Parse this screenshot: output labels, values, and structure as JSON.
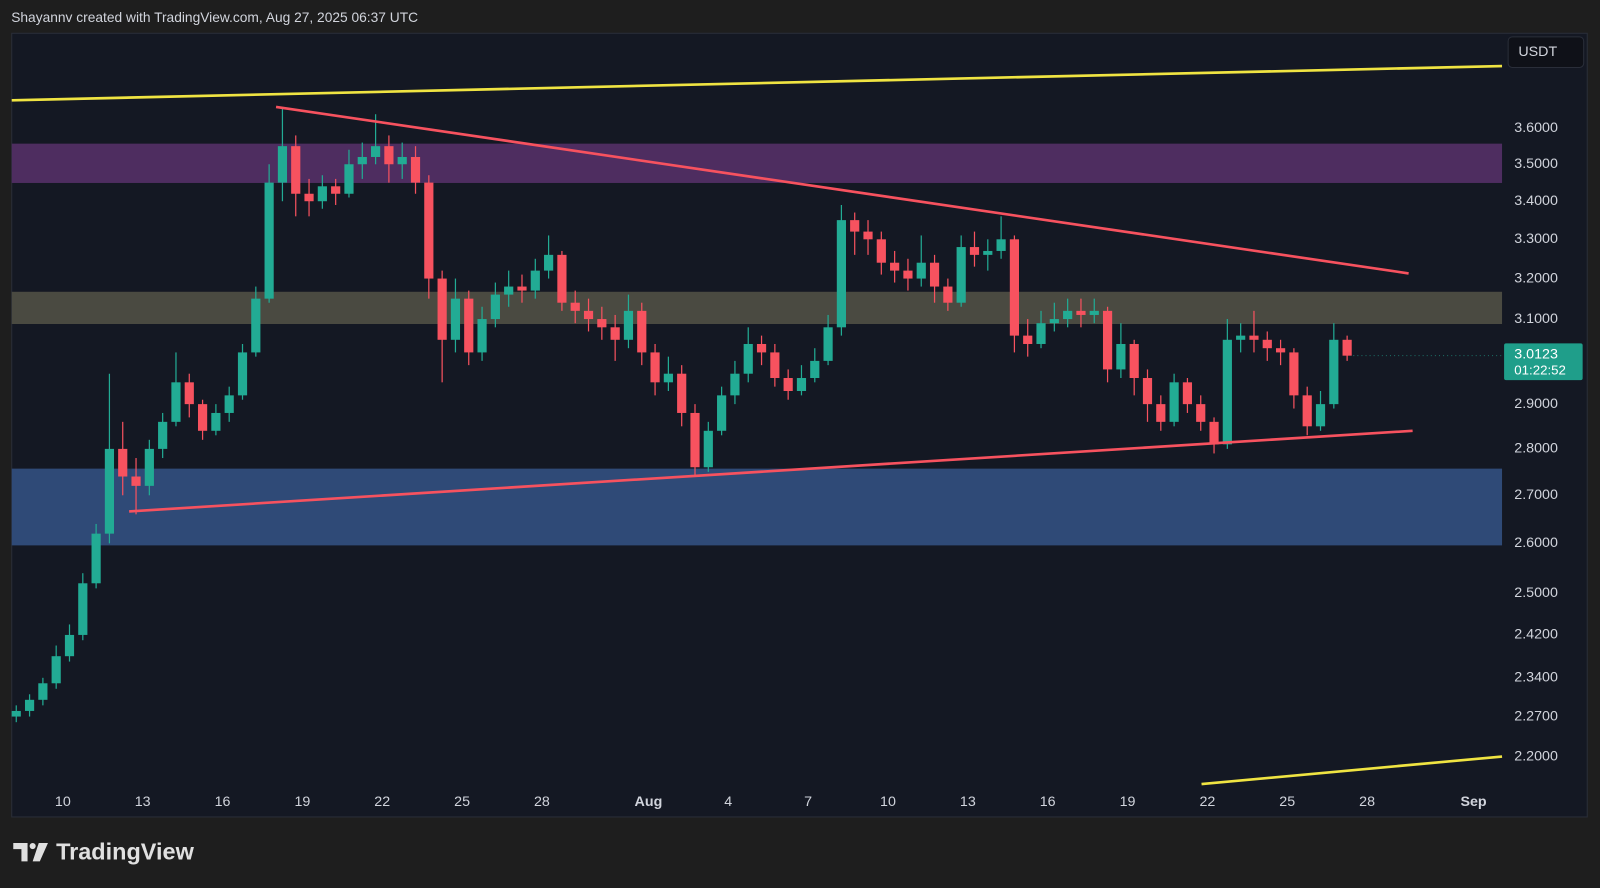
{
  "header": "Shayannv created with TradingView.com, Aug 27, 2025 06:37 UTC",
  "chart_data": {
    "type": "candlestick",
    "currency": "USDT",
    "countdown": "01:22:52",
    "up_color": "#22ab94",
    "down_color": "#f7525f",
    "log_scale": true,
    "grid": false,
    "x": [
      8.25,
      8.75,
      9.25,
      9.75,
      10.25,
      10.75,
      11.25,
      11.75,
      12.25,
      12.75,
      13.25,
      13.75,
      14.25,
      14.75,
      15.25,
      15.75,
      16.25,
      16.75,
      17.25,
      17.75,
      18.25,
      18.75,
      19.25,
      19.75,
      20.25,
      20.75,
      21.25,
      21.75,
      22.25,
      22.75,
      23.25,
      23.75,
      24.25,
      24.75,
      25.25,
      25.75,
      26.25,
      26.75,
      27.25,
      27.75,
      28.25,
      28.75,
      29.25,
      29.75,
      30.25,
      30.75,
      31.25,
      31.75,
      32.25,
      32.75,
      33.25,
      33.75,
      34.25,
      34.75,
      35.25,
      35.75,
      36.25,
      36.75,
      37.25,
      37.75,
      38.25,
      38.75,
      39.25,
      39.75,
      40.25,
      40.75,
      41.25,
      41.75,
      42.25,
      42.75,
      43.25,
      43.75,
      44.25,
      44.75,
      45.25,
      45.75,
      46.25,
      46.75,
      47.25,
      47.75,
      48.25,
      48.75,
      49.25,
      49.75,
      50.25,
      50.75,
      51.25,
      51.75,
      52.25,
      52.75,
      53.25,
      53.75,
      54.25,
      54.75,
      55.25,
      55.75,
      56.25,
      56.75,
      57.25,
      57.75,
      58.25
    ],
    "open": [
      2.27,
      2.28,
      2.3,
      2.33,
      2.38,
      2.42,
      2.52,
      2.62,
      2.8,
      2.74,
      2.72,
      2.8,
      2.86,
      2.95,
      2.9,
      2.84,
      2.88,
      2.92,
      3.02,
      3.15,
      3.45,
      3.55,
      3.42,
      3.4,
      3.44,
      3.42,
      3.5,
      3.52,
      3.55,
      3.5,
      3.52,
      3.45,
      3.2,
      3.05,
      3.15,
      3.02,
      3.1,
      3.16,
      3.18,
      3.17,
      3.22,
      3.26,
      3.14,
      3.12,
      3.1,
      3.08,
      3.05,
      3.12,
      3.02,
      2.95,
      2.97,
      2.88,
      2.76,
      2.84,
      2.92,
      2.97,
      3.04,
      3.02,
      2.96,
      2.93,
      2.96,
      3.0,
      3.08,
      3.35,
      3.32,
      3.3,
      3.24,
      3.22,
      3.2,
      3.24,
      3.18,
      3.14,
      3.28,
      3.26,
      3.27,
      3.3,
      3.06,
      3.04,
      3.09,
      3.1,
      3.12,
      3.11,
      3.12,
      2.98,
      3.04,
      2.96,
      2.9,
      2.86,
      2.95,
      2.9,
      2.86,
      2.81,
      3.05,
      3.06,
      3.05,
      3.03,
      3.02,
      2.92,
      2.85,
      2.9,
      3.05
    ],
    "high": [
      2.29,
      2.31,
      2.34,
      2.4,
      2.44,
      2.54,
      2.64,
      2.97,
      2.86,
      2.78,
      2.82,
      2.88,
      3.02,
      2.97,
      2.91,
      2.9,
      2.94,
      3.04,
      3.18,
      3.5,
      3.66,
      3.58,
      3.46,
      3.47,
      3.46,
      3.54,
      3.56,
      3.64,
      3.58,
      3.56,
      3.55,
      3.47,
      3.22,
      3.2,
      3.17,
      3.13,
      3.19,
      3.22,
      3.21,
      3.25,
      3.31,
      3.27,
      3.17,
      3.15,
      3.13,
      3.11,
      3.16,
      3.14,
      3.04,
      3.01,
      2.99,
      2.9,
      2.86,
      2.94,
      3.0,
      3.08,
      3.06,
      3.04,
      2.98,
      2.99,
      3.03,
      3.11,
      3.39,
      3.37,
      3.35,
      3.32,
      3.27,
      3.25,
      3.31,
      3.26,
      3.2,
      3.31,
      3.32,
      3.3,
      3.36,
      3.31,
      3.1,
      3.12,
      3.14,
      3.15,
      3.15,
      3.15,
      3.13,
      3.09,
      3.05,
      2.98,
      2.92,
      2.97,
      2.96,
      2.92,
      2.87,
      3.1,
      3.09,
      3.12,
      3.07,
      3.05,
      3.03,
      2.94,
      2.93,
      3.09,
      3.06
    ],
    "low": [
      2.26,
      2.27,
      2.29,
      2.32,
      2.37,
      2.41,
      2.51,
      2.6,
      2.7,
      2.66,
      2.7,
      2.78,
      2.85,
      2.87,
      2.82,
      2.83,
      2.86,
      2.91,
      3.01,
      3.14,
      3.4,
      3.36,
      3.36,
      3.38,
      3.39,
      3.41,
      3.46,
      3.5,
      3.45,
      3.46,
      3.42,
      3.15,
      2.95,
      3.02,
      2.99,
      3.0,
      3.08,
      3.13,
      3.14,
      3.15,
      3.2,
      3.12,
      3.09,
      3.07,
      3.05,
      3.0,
      3.03,
      2.99,
      2.92,
      2.93,
      2.85,
      2.74,
      2.75,
      2.83,
      2.9,
      2.95,
      2.99,
      2.94,
      2.91,
      2.92,
      2.95,
      2.99,
      3.06,
      3.26,
      3.26,
      3.21,
      3.19,
      3.17,
      3.18,
      3.14,
      3.12,
      3.13,
      3.23,
      3.22,
      3.25,
      3.02,
      3.01,
      3.03,
      3.07,
      3.08,
      3.08,
      3.09,
      2.95,
      2.96,
      2.92,
      2.86,
      2.84,
      2.85,
      2.88,
      2.84,
      2.79,
      2.8,
      3.02,
      3.02,
      3.0,
      2.99,
      2.89,
      2.83,
      2.84,
      2.89,
      3.0
    ],
    "close": [
      2.28,
      2.3,
      2.33,
      2.38,
      2.42,
      2.52,
      2.62,
      2.8,
      2.74,
      2.72,
      2.8,
      2.86,
      2.95,
      2.9,
      2.84,
      2.88,
      2.92,
      3.02,
      3.15,
      3.45,
      3.55,
      3.42,
      3.4,
      3.44,
      3.42,
      3.5,
      3.52,
      3.55,
      3.5,
      3.52,
      3.45,
      3.2,
      3.05,
      3.15,
      3.02,
      3.1,
      3.16,
      3.18,
      3.17,
      3.22,
      3.26,
      3.14,
      3.12,
      3.1,
      3.08,
      3.05,
      3.12,
      3.02,
      2.95,
      2.97,
      2.88,
      2.76,
      2.84,
      2.92,
      2.97,
      3.04,
      3.02,
      2.96,
      2.93,
      2.96,
      3.0,
      3.08,
      3.35,
      3.32,
      3.3,
      3.24,
      3.22,
      3.2,
      3.24,
      3.18,
      3.14,
      3.28,
      3.26,
      3.27,
      3.3,
      3.06,
      3.04,
      3.09,
      3.1,
      3.12,
      3.11,
      3.12,
      2.98,
      3.04,
      2.96,
      2.9,
      2.86,
      2.95,
      2.9,
      2.86,
      2.81,
      3.05,
      3.06,
      3.05,
      3.03,
      3.02,
      2.92,
      2.85,
      2.9,
      3.05,
      3.0123
    ],
    "xlim": [
      8.08,
      64.07
    ],
    "xticks": [
      10,
      13,
      16,
      19,
      22,
      25,
      28,
      {
        "value": 32,
        "label": "Aug"
      },
      {
        "value": 35,
        "label": "4"
      },
      {
        "value": 38,
        "label": "7"
      },
      {
        "value": 41,
        "label": "10"
      },
      {
        "value": 44,
        "label": "13"
      },
      {
        "value": 47,
        "label": "16"
      },
      {
        "value": 50,
        "label": "19"
      },
      {
        "value": 53,
        "label": "22"
      },
      {
        "value": 56,
        "label": "25"
      },
      {
        "value": 59,
        "label": "28"
      },
      {
        "value": 63,
        "label": "Sep"
      }
    ],
    "ylim": [
      2.15,
      3.88
    ],
    "yticks": [
      {
        "value": 3.6,
        "label": "3.6000"
      },
      {
        "value": 3.5,
        "label": "3.5000"
      },
      {
        "value": 3.4,
        "label": "3.4000"
      },
      {
        "value": 3.3,
        "label": "3.3000"
      },
      {
        "value": 3.2,
        "label": "3.2000"
      },
      {
        "value": 3.1,
        "label": "3.1000"
      },
      {
        "value": 2.9,
        "label": "2.9000"
      },
      {
        "value": 2.8,
        "label": "2.8000"
      },
      {
        "value": 2.7,
        "label": "2.7000"
      },
      {
        "value": 2.6,
        "label": "2.6000"
      },
      {
        "value": 2.5,
        "label": "2.5000"
      },
      {
        "value": 2.42,
        "label": "2.4200"
      },
      {
        "value": 2.34,
        "label": "2.3400"
      },
      {
        "value": 2.27,
        "label": "2.2700"
      },
      {
        "value": 2.2,
        "label": "2.2000"
      }
    ],
    "zones": [
      {
        "low": 3.449,
        "high": 3.557,
        "color": "#4e2d60"
      },
      {
        "low": 3.088,
        "high": 3.167,
        "color": "#4a4a41"
      },
      {
        "low": 2.596,
        "high": 2.757,
        "color": "#2f4a77"
      }
    ],
    "trendlines": [
      {
        "x": [
          8.08,
          64.07
        ],
        "y": [
          3.68,
          3.78
        ],
        "color": "#f0e442"
      },
      {
        "x": [
          52.78,
          64.07
        ],
        "y": [
          2.153,
          2.2
        ],
        "color": "#f0e442"
      },
      {
        "x": [
          18.01,
          60.56
        ],
        "y": [
          3.661,
          3.213
        ],
        "color": "#f7525f"
      },
      {
        "x": [
          12.49,
          60.71
        ],
        "y": [
          2.666,
          2.84
        ],
        "color": "#f7525f"
      }
    ]
  },
  "footer": {
    "brand": "TradingView"
  }
}
